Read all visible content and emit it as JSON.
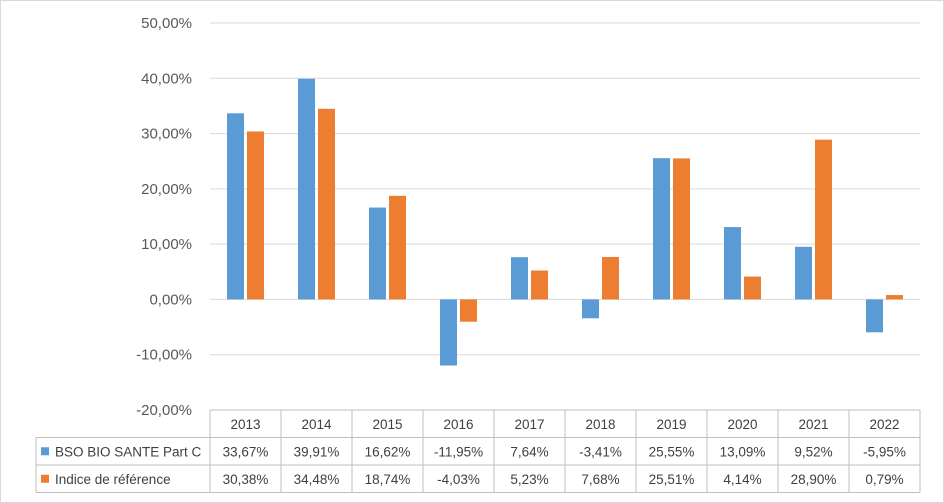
{
  "chart_data": {
    "type": "bar",
    "title": "",
    "xlabel": "",
    "ylabel": "",
    "ylim": [
      -20,
      50
    ],
    "yticks": [
      -20,
      -10,
      0,
      10,
      20,
      30,
      40,
      50
    ],
    "ytick_labels": [
      "-20,00%",
      "-10,00%",
      "0,00%",
      "10,00%",
      "20,00%",
      "30,00%",
      "40,00%",
      "50,00%"
    ],
    "grid": true,
    "legend": "data-table-left",
    "categories": [
      "2013",
      "2014",
      "2015",
      "2016",
      "2017",
      "2018",
      "2019",
      "2020",
      "2021",
      "2022"
    ],
    "series": [
      {
        "name": "BSO BIO SANTE Part C",
        "color": "#5b9bd5",
        "values": [
          33.67,
          39.91,
          16.62,
          -11.95,
          7.64,
          -3.41,
          25.55,
          13.09,
          9.52,
          -5.95
        ],
        "labels": [
          "33,67%",
          "39,91%",
          "16,62%",
          "-11,95%",
          "7,64%",
          "-3,41%",
          "25,55%",
          "13,09%",
          "9,52%",
          "-5,95%"
        ]
      },
      {
        "name": "Indice de référence",
        "color": "#ed7d31",
        "values": [
          30.38,
          34.48,
          18.74,
          -4.03,
          5.23,
          7.68,
          25.51,
          4.14,
          28.9,
          0.79
        ],
        "labels": [
          "30,38%",
          "34,48%",
          "18,74%",
          "-4,03%",
          "5,23%",
          "7,68%",
          "25,51%",
          "4,14%",
          "28,90%",
          "0,79%"
        ]
      }
    ]
  }
}
